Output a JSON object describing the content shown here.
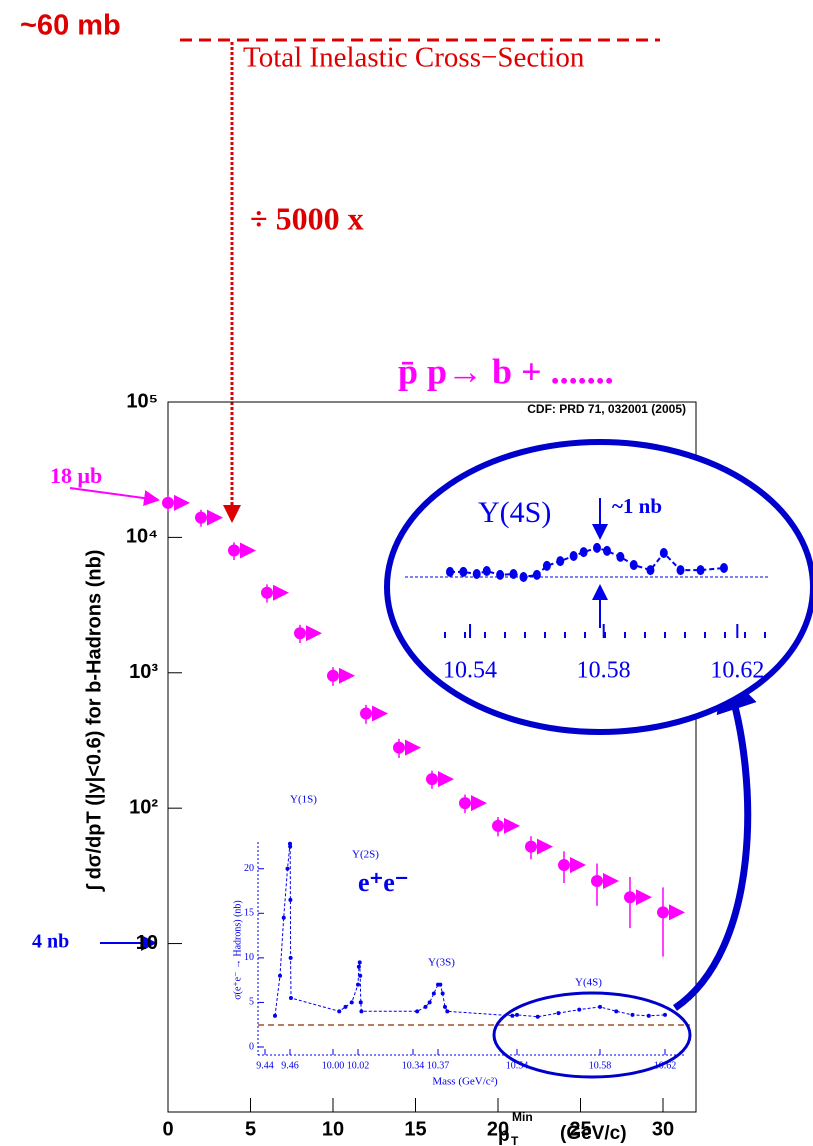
{
  "chart_data": [
    {
      "type": "scatter",
      "log_y": true,
      "color": "#ff00ff",
      "ylabel": "∫ dσ/dpT (|y|<0.6) for b-Hadrons  (nb)",
      "xlabel": {
        "main": "p",
        "sub": "T",
        "sup": "Min",
        "unit": "(GeV/c)"
      },
      "x": [
        0,
        2,
        4,
        6,
        8,
        10,
        12,
        14,
        16,
        18,
        20,
        22,
        24,
        26,
        28,
        30
      ],
      "values": [
        18000,
        14000,
        8000,
        3900,
        1960,
        950,
        500,
        280,
        164,
        109,
        74,
        52,
        38,
        29,
        22,
        17
      ],
      "errors": [
        2500,
        2000,
        1200,
        600,
        300,
        150,
        80,
        45,
        25,
        17,
        12,
        10,
        10,
        10,
        9,
        9
      ],
      "xlim": [
        0,
        32
      ],
      "xticks": [
        0,
        5,
        10,
        15,
        20,
        25,
        30
      ],
      "ylim": [
        0.57,
        100000
      ],
      "yticks": [
        {
          "value": 100000,
          "label": "10⁵"
        },
        {
          "value": 10000,
          "label": "10⁴"
        },
        {
          "value": 1000,
          "label": "10³"
        },
        {
          "value": 100,
          "label": "10²"
        },
        10
      ],
      "annotations": {
        "cross_section": "~60 mb",
        "total_inelastic": "Total Inelastic Cross−Section",
        "factor": "÷ 5000 x",
        "process": "p̄ p→  b + .......",
        "reference": "CDF: PRD 71, 032001 (2005)",
        "peak": "18 μb",
        "level": "4 nb"
      }
    },
    {
      "type": "scatter",
      "color": "#0000ee",
      "ylabel": "σ(e⁺e⁻ → Hadrons) (nb)",
      "xlabel": "Mass (GeV/c²)",
      "x": [
        9.448,
        9.452,
        9.455,
        9.458,
        9.46,
        9.462,
        9.465,
        9.468,
        9.472,
        10.005,
        10.01,
        10.015,
        10.02,
        10.025,
        10.03,
        10.033,
        10.036,
        10.04,
        10.345,
        10.355,
        10.36,
        10.365,
        10.37,
        10.375,
        10.38,
        10.385,
        10.39,
        10.53,
        10.54,
        10.55,
        10.56,
        10.57,
        10.58,
        10.59,
        10.6,
        10.61,
        10.62
      ],
      "values": [
        3.5,
        8,
        14.5,
        20,
        22.8,
        22.5,
        16.5,
        10,
        5.5,
        4,
        4.5,
        5,
        7,
        9,
        9.5,
        8,
        5,
        4,
        4,
        4.5,
        5,
        6,
        7,
        7,
        6,
        4.5,
        4,
        3.5,
        3.6,
        3.4,
        3.8,
        4.2,
        4.5,
        4,
        3.6,
        3.5,
        3.6
      ],
      "xticks": [
        9.44,
        9.46,
        {
          "value": 10,
          "label": "10.00"
        },
        10.02,
        10.34,
        10.37,
        10.54,
        10.58,
        10.62
      ],
      "ylim": [
        0,
        23
      ],
      "yticks": [
        0,
        5,
        10,
        15,
        20
      ],
      "annotations": {
        "s1": "Υ(1S)",
        "s2": "Υ(2S)",
        "s3": "Υ(3S)",
        "s4": "Υ(4S)",
        "ee": "e⁺e⁻"
      }
    },
    {
      "type": "scatter",
      "color": "#0000ee",
      "x": [
        10.534,
        10.538,
        10.542,
        10.545,
        10.549,
        10.553,
        10.556,
        10.56,
        10.563,
        10.567,
        10.571,
        10.574,
        10.578,
        10.581,
        10.585,
        10.589,
        10.594,
        10.598,
        10.603,
        10.609,
        10.616
      ],
      "values": [
        3.67,
        3.67,
        3.6,
        3.7,
        3.57,
        3.6,
        3.5,
        3.57,
        3.87,
        4.03,
        4.2,
        4.33,
        4.47,
        4.37,
        4.17,
        3.9,
        3.73,
        4.3,
        3.73,
        3.73,
        3.8
      ],
      "xlim": [
        10.534,
        10.622
      ],
      "xticks": [
        10.54,
        10.58,
        10.62
      ],
      "ylim": [
        3,
        5
      ],
      "annotations": {
        "state": "Υ(4S)",
        "width": "~1 nb"
      }
    }
  ]
}
